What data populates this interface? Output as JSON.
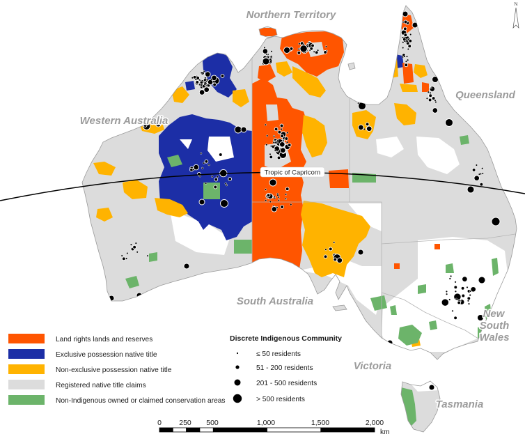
{
  "map": {
    "north_arrow_label": "N",
    "tropic_label": "Tropic of Capricorn",
    "state_labels": {
      "northern_territory": "Northern Territory",
      "queensland": "Queensland",
      "western_australia": "Western Australia",
      "south_australia": "South Australia",
      "new_south_wales": [
        "New",
        "South",
        "Wales"
      ],
      "victoria": "Victoria",
      "tasmania": "Tasmania"
    },
    "colors": {
      "coastline": "#9a9a9a",
      "state_border": "#b4b4b4",
      "unclaimed_land": "#ffffff",
      "tropic_line": "#000000"
    }
  },
  "legend": {
    "land_categories": [
      {
        "label": "Land rights lands and reserves",
        "color": "#FF5500"
      },
      {
        "label": "Exclusive possession native title",
        "color": "#1C2EA6"
      },
      {
        "label": "Non-exclusive possession native title",
        "color": "#FFB300"
      },
      {
        "label": "Registered native title claims",
        "color": "#DCDCDC"
      },
      {
        "label": "Non-Indigenous owned or claimed conservation areas",
        "color": "#6CB46A"
      }
    ]
  },
  "community_legend": {
    "title": "Discrete Indigenous Community",
    "classes": [
      "≤ 50 residents",
      "51 - 200 residents",
      "201 - 500 residents",
      "> 500 residents"
    ],
    "marker_color": "#000000"
  },
  "scale_bar": {
    "ticks": [
      "0",
      "250",
      "500",
      "1,000",
      "1,500",
      "2,000"
    ],
    "unit": "km"
  }
}
